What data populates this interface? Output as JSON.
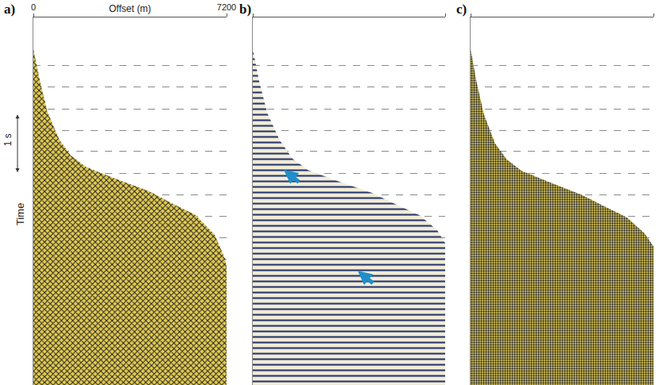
{
  "chart_data": [
    {
      "type": "area",
      "title": "a)",
      "xlabel": "Offset (m)",
      "ylabel": "Time",
      "x": [
        0,
        230,
        520,
        960,
        1390,
        1970,
        3130,
        4290,
        5160,
        6030,
        6760,
        7140,
        7200
      ],
      "values": [
        0.49,
        0.96,
        1.46,
        1.89,
        2.14,
        2.32,
        2.51,
        2.69,
        2.88,
        3.06,
        3.37,
        3.74,
        3.85
      ],
      "xlim": [
        0,
        7200
      ],
      "ylim": [
        0,
        5.7
      ],
      "xticks": [
        0,
        7200
      ],
      "yticks": [
        0.75,
        1.08,
        1.42,
        1.75,
        2.08,
        2.42,
        2.75,
        3.08,
        3.42,
        3.75,
        4.08,
        4.42,
        4.75,
        5.08,
        5.42
      ],
      "grid": true,
      "tick_labels": "x",
      "color": "#e3cc55",
      "scale_bar": {
        "label": "1 s",
        "from": 1.4,
        "to": 2.4
      }
    },
    {
      "type": "area",
      "title": "b)",
      "x": [
        0,
        240,
        540,
        1000,
        1490,
        2080,
        3270,
        4460,
        5360,
        6250,
        6900,
        7200
      ],
      "values": [
        0.49,
        0.99,
        1.48,
        1.9,
        2.19,
        2.37,
        2.55,
        2.72,
        2.9,
        3.07,
        3.3,
        3.5
      ],
      "xlim": [
        0,
        7200
      ],
      "ylim": [
        0,
        5.7
      ],
      "xticks": [
        0,
        7200
      ],
      "yticks": [
        0.75,
        1.08,
        1.42,
        1.75,
        2.08,
        2.42,
        2.75,
        3.08,
        3.42,
        3.75,
        4.08,
        4.42,
        4.75,
        5.08,
        5.42
      ],
      "grid": true,
      "tick_labels": false,
      "color": "#f1ecd6",
      "arrows": [
        {
          "x": 1160,
          "y": 2.36
        },
        {
          "x": 3930,
          "y": 3.93
        }
      ]
    },
    {
      "type": "area",
      "title": "c)",
      "x": [
        0,
        230,
        520,
        960,
        1420,
        2010,
        3200,
        4380,
        5270,
        6150,
        6850,
        7200
      ],
      "values": [
        0.49,
        0.99,
        1.5,
        1.95,
        2.2,
        2.38,
        2.57,
        2.75,
        2.93,
        3.1,
        3.35,
        3.55
      ],
      "xlim": [
        0,
        7200
      ],
      "ylim": [
        0,
        5.7
      ],
      "xticks": [
        0,
        7200
      ],
      "yticks": [
        0.75,
        1.08,
        1.42,
        1.75,
        2.08,
        2.42,
        2.75,
        3.08,
        3.42,
        3.75,
        4.08,
        4.42,
        4.75,
        5.08,
        5.42
      ],
      "grid": true,
      "tick_labels": false,
      "color": "#d9c558"
    }
  ]
}
